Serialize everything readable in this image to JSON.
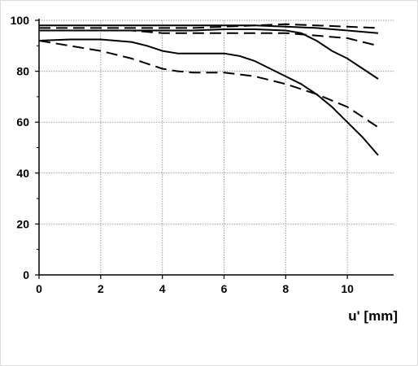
{
  "chart_data": {
    "type": "line",
    "title": "",
    "xlabel": "u' [mm]",
    "ylabel": "",
    "xlim": [
      0,
      11.5
    ],
    "ylim": [
      0,
      100
    ],
    "x_ticks": [
      0,
      2,
      4,
      6,
      8,
      10
    ],
    "y_ticks": [
      0,
      20,
      40,
      60,
      80,
      100
    ],
    "y_minor_ticks": [
      10,
      30,
      50,
      70,
      90
    ],
    "grid": true,
    "legend": "none",
    "series": [
      {
        "style": "solid",
        "points": [
          [
            0,
            98
          ],
          [
            2,
            98
          ],
          [
            4,
            98
          ],
          [
            6,
            98
          ],
          [
            7,
            98
          ],
          [
            8,
            97.5
          ],
          [
            9,
            97
          ],
          [
            10,
            96
          ],
          [
            11,
            95
          ]
        ]
      },
      {
        "style": "dashed",
        "points": [
          [
            0,
            97
          ],
          [
            2,
            97
          ],
          [
            4,
            97
          ],
          [
            5,
            97
          ],
          [
            6,
            97.5
          ],
          [
            7,
            98
          ],
          [
            8,
            98.5
          ],
          [
            9,
            98
          ],
          [
            10,
            97.5
          ],
          [
            11,
            97
          ]
        ]
      },
      {
        "style": "solid",
        "points": [
          [
            0,
            96
          ],
          [
            2,
            96
          ],
          [
            3,
            96
          ],
          [
            4,
            96
          ],
          [
            5,
            96
          ],
          [
            6,
            96.5
          ],
          [
            7,
            96.5
          ],
          [
            8,
            96
          ],
          [
            8.5,
            95
          ],
          [
            9,
            92
          ],
          [
            9.5,
            88
          ],
          [
            10,
            85
          ],
          [
            10.5,
            81
          ],
          [
            11,
            77
          ]
        ]
      },
      {
        "style": "dashed",
        "points": [
          [
            0,
            96
          ],
          [
            2,
            96
          ],
          [
            3,
            96
          ],
          [
            4,
            95
          ],
          [
            6,
            95
          ],
          [
            7,
            95
          ],
          [
            8,
            95
          ],
          [
            8.5,
            94.5
          ],
          [
            9,
            94
          ],
          [
            10,
            93
          ],
          [
            11,
            90
          ]
        ]
      },
      {
        "style": "solid",
        "points": [
          [
            0,
            92
          ],
          [
            1,
            92.5
          ],
          [
            2,
            92.5
          ],
          [
            3,
            91.5
          ],
          [
            3.5,
            90
          ],
          [
            4,
            88
          ],
          [
            4.5,
            87
          ],
          [
            5,
            87
          ],
          [
            6,
            87
          ],
          [
            6.5,
            86
          ],
          [
            7,
            84
          ],
          [
            8,
            78
          ],
          [
            8.5,
            75
          ],
          [
            9,
            71
          ],
          [
            9.5,
            66
          ],
          [
            10,
            60
          ],
          [
            10.5,
            54
          ],
          [
            11,
            47
          ]
        ]
      },
      {
        "style": "dashed",
        "points": [
          [
            0,
            92
          ],
          [
            1,
            90
          ],
          [
            2,
            88
          ],
          [
            3,
            85
          ],
          [
            3.5,
            83
          ],
          [
            4,
            81
          ],
          [
            4.5,
            80
          ],
          [
            5,
            79.5
          ],
          [
            6,
            79.5
          ],
          [
            7,
            78
          ],
          [
            8,
            75
          ],
          [
            9,
            71
          ],
          [
            10,
            66
          ],
          [
            10.5,
            62
          ],
          [
            11,
            58
          ]
        ]
      }
    ]
  }
}
